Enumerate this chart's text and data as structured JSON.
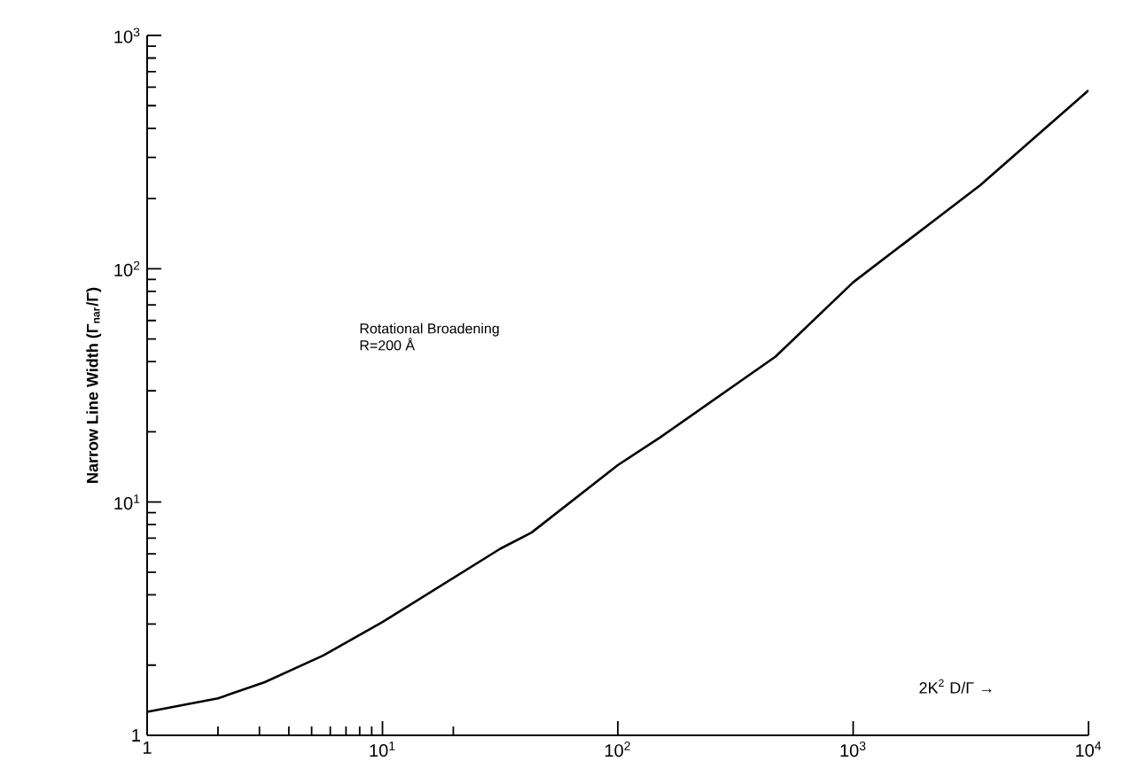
{
  "chart_data": {
    "type": "line",
    "xlabel": "2K$^{2}$ D/Γ →",
    "ylabel": "Narrow Line Width (Γ$_{nar}$/Γ)",
    "log": "xy",
    "grid": false,
    "marker": "none",
    "line_style": "solid",
    "x": [
      1,
      2,
      3.16,
      5.6,
      10,
      31.6,
      43,
      100,
      151,
      468,
      1000,
      3470,
      10000
    ],
    "series": [
      {
        "color": "#000000",
        "values": [
          1.26,
          1.44,
          1.69,
          2.2,
          3.06,
          6.3,
          7.4,
          14.4,
          18.9,
          42,
          87.5,
          228,
          582
        ]
      }
    ],
    "xlim": [
      1,
      10000
    ],
    "ylim": [
      1,
      1000
    ],
    "xticks": [
      1,
      {
        "value": 10,
        "label": "10$^{1}$"
      },
      {
        "value": 100,
        "label": "10$^{2}$"
      },
      {
        "value": 1000,
        "label": "10$^{3}$"
      },
      {
        "value": 10000,
        "label": "10$^{4}$"
      }
    ],
    "yticks": [
      1,
      {
        "value": 10,
        "label": "10$^{1}$"
      },
      {
        "value": 100,
        "label": "10$^{2}$"
      },
      {
        "value": 1000,
        "label": "10$^{3}$"
      }
    ],
    "annotations": [
      "Rotational Broadening",
      "R=200 Å"
    ]
  }
}
